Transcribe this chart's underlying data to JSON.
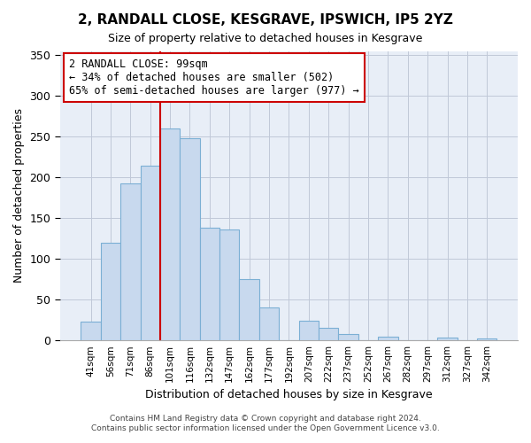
{
  "title": "2, RANDALL CLOSE, KESGRAVE, IPSWICH, IP5 2YZ",
  "subtitle": "Size of property relative to detached houses in Kesgrave",
  "xlabel": "Distribution of detached houses by size in Kesgrave",
  "ylabel": "Number of detached properties",
  "bar_color": "#c8d9ee",
  "bar_edge_color": "#7bafd4",
  "plot_bg_color": "#e8eef7",
  "categories": [
    "41sqm",
    "56sqm",
    "71sqm",
    "86sqm",
    "101sqm",
    "116sqm",
    "132sqm",
    "147sqm",
    "162sqm",
    "177sqm",
    "192sqm",
    "207sqm",
    "222sqm",
    "237sqm",
    "252sqm",
    "267sqm",
    "282sqm",
    "297sqm",
    "312sqm",
    "327sqm",
    "342sqm"
  ],
  "values": [
    23,
    120,
    192,
    214,
    260,
    248,
    138,
    136,
    75,
    40,
    0,
    24,
    15,
    8,
    0,
    5,
    0,
    0,
    3,
    0,
    2
  ],
  "vline_x_index": 4,
  "vline_color": "#cc0000",
  "ylim": [
    0,
    355
  ],
  "yticks": [
    0,
    50,
    100,
    150,
    200,
    250,
    300,
    350
  ],
  "annotation_title": "2 RANDALL CLOSE: 99sqm",
  "annotation_line1": "← 34% of detached houses are smaller (502)",
  "annotation_line2": "65% of semi-detached houses are larger (977) →",
  "footer1": "Contains HM Land Registry data © Crown copyright and database right 2024.",
  "footer2": "Contains public sector information licensed under the Open Government Licence v3.0.",
  "background_color": "#ffffff",
  "grid_color": "#c0c8d8"
}
